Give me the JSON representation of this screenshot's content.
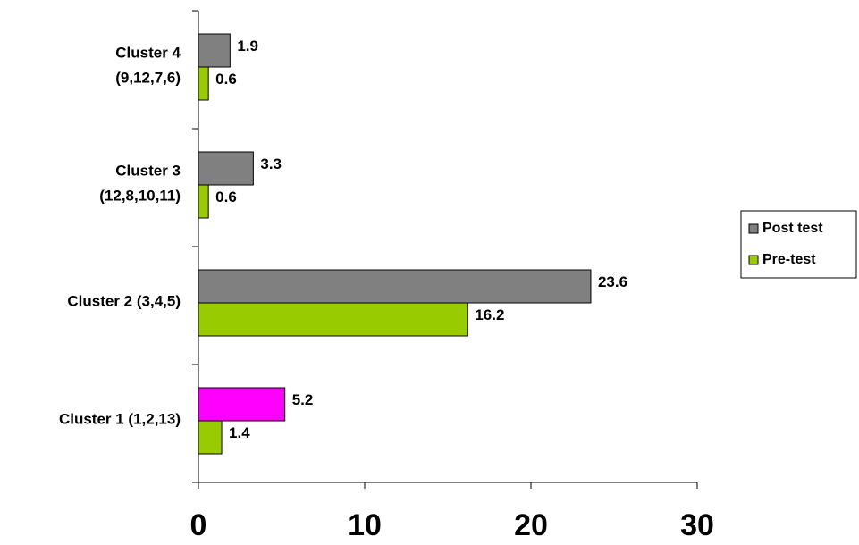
{
  "chart_data": {
    "type": "hbar",
    "categories": [
      [
        "Cluster 1 (1,2,13)"
      ],
      [
        "Cluster 2 (3,4,5)"
      ],
      [
        "Cluster 3",
        "(12,8,10,11)"
      ],
      [
        "Cluster 4",
        "(9,12,7,6)"
      ]
    ],
    "series": [
      {
        "name": "Post test",
        "color": "#808080",
        "colors": [
          "#ff00ff",
          "#808080",
          "#808080",
          "#808080"
        ],
        "values": [
          5.2,
          23.6,
          3.3,
          1.9
        ]
      },
      {
        "name": "Pre-test",
        "color": "#99cc00",
        "values": [
          1.4,
          16.2,
          0.6,
          0.6
        ]
      }
    ],
    "xlim": [
      0,
      30
    ],
    "xticks": [
      0,
      10,
      20,
      30
    ],
    "legend": "right"
  }
}
